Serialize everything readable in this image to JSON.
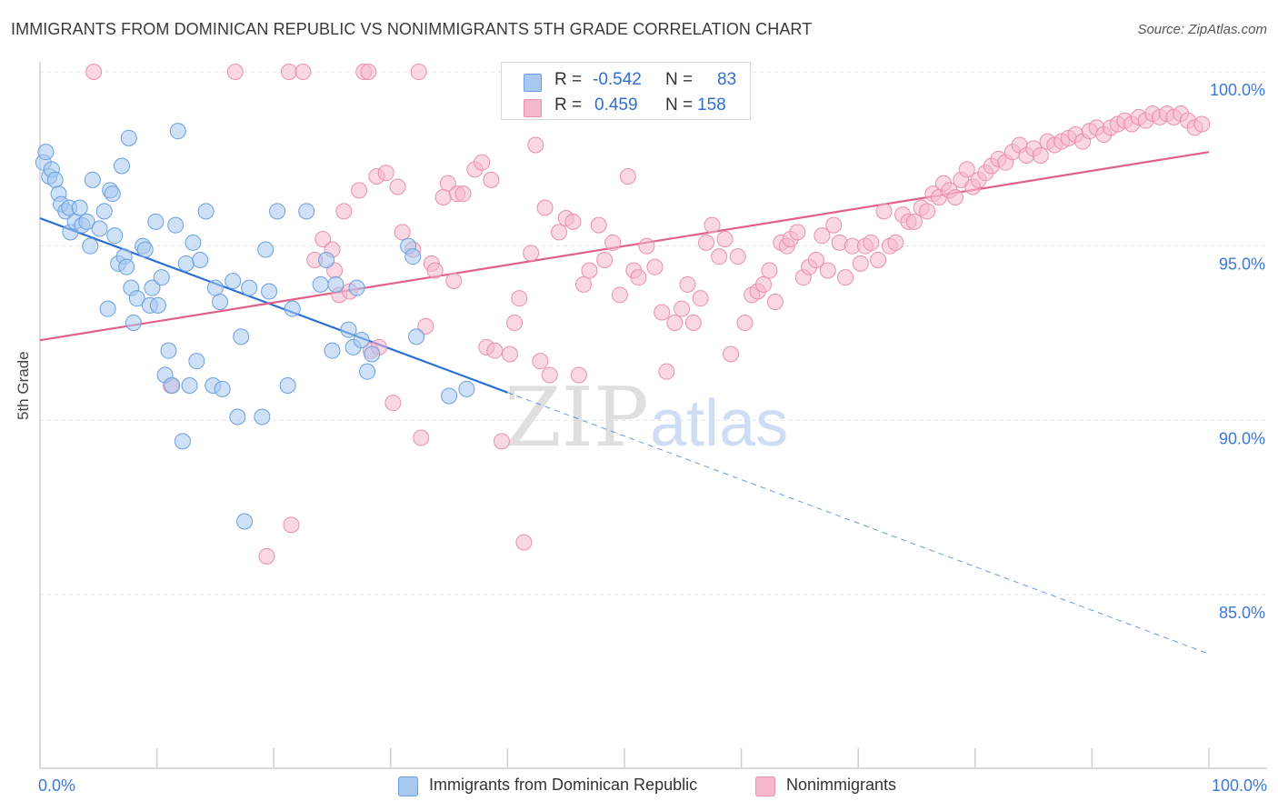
{
  "title": "IMMIGRANTS FROM DOMINICAN REPUBLIC VS NONIMMIGRANTS 5TH GRADE CORRELATION CHART",
  "source": "Source: ZipAtlas.com",
  "watermark": {
    "zip": "ZIP",
    "atlas": "atlas"
  },
  "legend_top": {
    "r_label": "R =",
    "n_label": "N =",
    "rows": [
      {
        "r": "-0.542",
        "n": "83",
        "color": "#a8c8f0"
      },
      {
        "r": "0.459",
        "n": "158",
        "color": "#f5b8cc"
      }
    ]
  },
  "chart_data": {
    "type": "scatter",
    "title": "IMMIGRANTS FROM DOMINICAN REPUBLIC VS NONIMMIGRANTS 5TH GRADE CORRELATION CHART",
    "xlabel": "",
    "ylabel": "5th Grade",
    "xlim": [
      0,
      100
    ],
    "ylim": [
      80.5,
      100.6
    ],
    "x_tick_labels": [
      "0.0%",
      "100.0%"
    ],
    "y_ticks": [
      85,
      90,
      95,
      100
    ],
    "y_tick_labels": [
      "85.0%",
      "90.0%",
      "95.0%",
      "100.0%"
    ],
    "grid": true,
    "legend_position": "bottom",
    "series": [
      {
        "name": "Immigrants from Dominican Republic",
        "color": "#a8c8f0",
        "stroke": "#6b9fe0",
        "line_color": "#2a6fd4",
        "trend": {
          "x0": 0,
          "y0": 95.8,
          "x1": 40,
          "y1": 90.8,
          "dashed_to_x": 100,
          "dashed_to_y": 83.3
        },
        "points": [
          [
            0.3,
            97.4
          ],
          [
            0.5,
            97.7
          ],
          [
            0.8,
            97.0
          ],
          [
            1.0,
            97.2
          ],
          [
            1.3,
            96.9
          ],
          [
            1.6,
            96.5
          ],
          [
            1.8,
            96.2
          ],
          [
            2.2,
            96.0
          ],
          [
            2.5,
            96.1
          ],
          [
            2.6,
            95.4
          ],
          [
            3.0,
            95.7
          ],
          [
            3.4,
            96.1
          ],
          [
            3.6,
            95.6
          ],
          [
            4.0,
            95.7
          ],
          [
            4.3,
            95.0
          ],
          [
            4.5,
            96.9
          ],
          [
            5.1,
            95.5
          ],
          [
            5.5,
            96.0
          ],
          [
            5.8,
            93.2
          ],
          [
            6.0,
            96.6
          ],
          [
            6.2,
            96.5
          ],
          [
            6.4,
            95.3
          ],
          [
            6.7,
            94.5
          ],
          [
            7.0,
            97.3
          ],
          [
            7.2,
            94.7
          ],
          [
            7.4,
            94.4
          ],
          [
            7.6,
            98.1
          ],
          [
            7.8,
            93.8
          ],
          [
            8.0,
            92.8
          ],
          [
            8.3,
            93.5
          ],
          [
            8.8,
            95.0
          ],
          [
            9.0,
            94.9
          ],
          [
            9.4,
            93.3
          ],
          [
            9.6,
            93.8
          ],
          [
            9.9,
            95.7
          ],
          [
            10.1,
            93.3
          ],
          [
            10.4,
            94.1
          ],
          [
            10.7,
            91.3
          ],
          [
            11.0,
            92.0
          ],
          [
            11.3,
            91.0
          ],
          [
            11.6,
            95.6
          ],
          [
            11.8,
            98.3
          ],
          [
            12.2,
            89.4
          ],
          [
            12.5,
            94.5
          ],
          [
            12.8,
            91.0
          ],
          [
            13.1,
            95.1
          ],
          [
            13.4,
            91.7
          ],
          [
            13.7,
            94.6
          ],
          [
            14.2,
            96.0
          ],
          [
            14.8,
            91.0
          ],
          [
            15.0,
            93.8
          ],
          [
            15.4,
            93.4
          ],
          [
            15.6,
            90.9
          ],
          [
            16.5,
            94.0
          ],
          [
            16.9,
            90.1
          ],
          [
            17.2,
            92.4
          ],
          [
            17.5,
            87.1
          ],
          [
            17.9,
            93.8
          ],
          [
            19.0,
            90.1
          ],
          [
            19.3,
            94.9
          ],
          [
            19.6,
            93.7
          ],
          [
            20.3,
            96.0
          ],
          [
            21.2,
            91.0
          ],
          [
            21.6,
            93.2
          ],
          [
            22.8,
            96.0
          ],
          [
            24.0,
            93.9
          ],
          [
            24.5,
            94.6
          ],
          [
            25.0,
            92.0
          ],
          [
            25.3,
            93.9
          ],
          [
            26.4,
            92.6
          ],
          [
            26.8,
            92.1
          ],
          [
            27.1,
            93.8
          ],
          [
            27.5,
            92.3
          ],
          [
            28.0,
            91.4
          ],
          [
            28.4,
            91.9
          ],
          [
            31.5,
            95.0
          ],
          [
            31.9,
            94.7
          ],
          [
            32.2,
            92.4
          ],
          [
            35.0,
            90.7
          ],
          [
            36.5,
            90.9
          ]
        ]
      },
      {
        "name": "Nonimmigrants",
        "color": "#f5b8cc",
        "stroke": "#e890ae",
        "line_color": "#e0608c",
        "trend": {
          "x0": 0,
          "y0": 92.3,
          "x1": 100,
          "y1": 97.7
        },
        "points": [
          [
            4.6,
            100.0
          ],
          [
            11.2,
            91.0
          ],
          [
            16.7,
            100.0
          ],
          [
            19.4,
            86.1
          ],
          [
            21.3,
            100.0
          ],
          [
            21.5,
            87.0
          ],
          [
            22.5,
            100.0
          ],
          [
            23.5,
            94.6
          ],
          [
            24.2,
            95.2
          ],
          [
            25.0,
            94.9
          ],
          [
            25.2,
            94.3
          ],
          [
            25.6,
            93.6
          ],
          [
            26.0,
            96.0
          ],
          [
            26.5,
            93.7
          ],
          [
            27.3,
            96.6
          ],
          [
            27.7,
            100.0
          ],
          [
            28.1,
            100.0
          ],
          [
            28.3,
            92.0
          ],
          [
            28.8,
            97.0
          ],
          [
            29.0,
            92.1
          ],
          [
            29.6,
            97.1
          ],
          [
            30.2,
            90.5
          ],
          [
            30.6,
            96.7
          ],
          [
            31.0,
            95.4
          ],
          [
            31.9,
            94.9
          ],
          [
            32.4,
            100.0
          ],
          [
            32.6,
            89.5
          ],
          [
            33.0,
            92.7
          ],
          [
            33.5,
            94.5
          ],
          [
            33.8,
            94.3
          ],
          [
            34.5,
            96.4
          ],
          [
            34.9,
            96.8
          ],
          [
            35.4,
            94.0
          ],
          [
            35.7,
            96.5
          ],
          [
            36.2,
            96.5
          ],
          [
            37.2,
            97.2
          ],
          [
            37.8,
            97.4
          ],
          [
            38.2,
            92.1
          ],
          [
            38.6,
            96.9
          ],
          [
            38.9,
            92.0
          ],
          [
            39.5,
            89.4
          ],
          [
            40.2,
            91.9
          ],
          [
            40.6,
            92.8
          ],
          [
            41.0,
            93.5
          ],
          [
            41.4,
            86.5
          ],
          [
            42.0,
            94.8
          ],
          [
            42.4,
            97.9
          ],
          [
            42.8,
            91.7
          ],
          [
            43.2,
            96.1
          ],
          [
            43.6,
            91.3
          ],
          [
            44.4,
            95.4
          ],
          [
            45.0,
            95.8
          ],
          [
            45.6,
            95.7
          ],
          [
            46.1,
            91.3
          ],
          [
            46.5,
            93.9
          ],
          [
            47.0,
            94.3
          ],
          [
            47.8,
            95.6
          ],
          [
            48.3,
            94.6
          ],
          [
            49.0,
            95.1
          ],
          [
            49.6,
            93.6
          ],
          [
            50.3,
            97.0
          ],
          [
            50.8,
            94.3
          ],
          [
            51.2,
            94.1
          ],
          [
            51.9,
            95.0
          ],
          [
            52.6,
            94.4
          ],
          [
            53.2,
            93.1
          ],
          [
            53.6,
            91.4
          ],
          [
            54.3,
            92.8
          ],
          [
            54.9,
            93.2
          ],
          [
            55.4,
            93.9
          ],
          [
            55.9,
            92.8
          ],
          [
            56.5,
            93.5
          ],
          [
            57.0,
            95.1
          ],
          [
            57.5,
            95.6
          ],
          [
            58.1,
            94.7
          ],
          [
            58.6,
            95.2
          ],
          [
            59.1,
            91.9
          ],
          [
            59.7,
            94.7
          ],
          [
            60.3,
            92.8
          ],
          [
            60.9,
            93.6
          ],
          [
            61.4,
            93.7
          ],
          [
            61.9,
            93.9
          ],
          [
            62.4,
            94.3
          ],
          [
            62.9,
            93.4
          ],
          [
            63.4,
            95.1
          ],
          [
            63.9,
            95.0
          ],
          [
            64.2,
            95.2
          ],
          [
            64.8,
            95.4
          ],
          [
            65.3,
            94.1
          ],
          [
            65.8,
            94.4
          ],
          [
            66.4,
            94.6
          ],
          [
            66.9,
            95.3
          ],
          [
            67.4,
            94.3
          ],
          [
            67.9,
            95.6
          ],
          [
            68.4,
            95.1
          ],
          [
            68.9,
            94.1
          ],
          [
            69.5,
            95.0
          ],
          [
            70.2,
            94.5
          ],
          [
            70.6,
            95.0
          ],
          [
            71.1,
            95.1
          ],
          [
            71.7,
            94.6
          ],
          [
            72.2,
            96.0
          ],
          [
            72.7,
            95.0
          ],
          [
            73.2,
            95.1
          ],
          [
            73.8,
            95.9
          ],
          [
            74.3,
            95.7
          ],
          [
            74.8,
            95.7
          ],
          [
            75.4,
            96.1
          ],
          [
            75.9,
            96.0
          ],
          [
            76.4,
            96.5
          ],
          [
            76.9,
            96.4
          ],
          [
            77.3,
            96.8
          ],
          [
            77.8,
            96.6
          ],
          [
            78.3,
            96.4
          ],
          [
            78.8,
            96.9
          ],
          [
            79.3,
            97.2
          ],
          [
            79.8,
            96.7
          ],
          [
            80.3,
            96.9
          ],
          [
            80.9,
            97.1
          ],
          [
            81.4,
            97.3
          ],
          [
            82.0,
            97.5
          ],
          [
            82.6,
            97.4
          ],
          [
            83.2,
            97.7
          ],
          [
            83.8,
            97.9
          ],
          [
            84.4,
            97.6
          ],
          [
            85.0,
            97.8
          ],
          [
            85.6,
            97.6
          ],
          [
            86.2,
            98.0
          ],
          [
            86.8,
            97.9
          ],
          [
            87.4,
            98.0
          ],
          [
            88.0,
            98.1
          ],
          [
            88.6,
            98.2
          ],
          [
            89.2,
            98.0
          ],
          [
            89.8,
            98.3
          ],
          [
            90.4,
            98.4
          ],
          [
            91.0,
            98.2
          ],
          [
            91.6,
            98.4
          ],
          [
            92.2,
            98.5
          ],
          [
            92.8,
            98.6
          ],
          [
            93.4,
            98.5
          ],
          [
            94.0,
            98.7
          ],
          [
            94.6,
            98.6
          ],
          [
            95.2,
            98.8
          ],
          [
            95.8,
            98.7
          ],
          [
            96.4,
            98.8
          ],
          [
            97.0,
            98.7
          ],
          [
            97.6,
            98.8
          ],
          [
            98.2,
            98.6
          ],
          [
            98.8,
            98.4
          ],
          [
            99.4,
            98.5
          ]
        ]
      }
    ]
  }
}
